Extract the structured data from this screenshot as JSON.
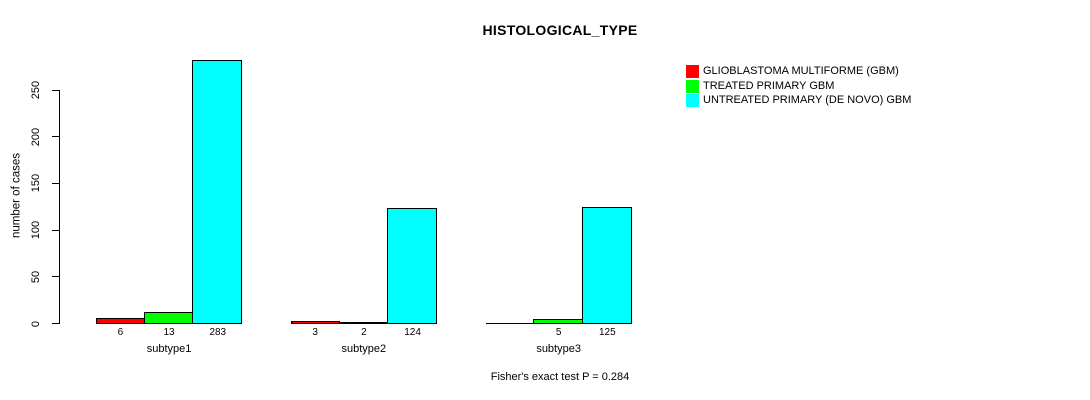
{
  "chart_data": {
    "type": "bar",
    "title": "HISTOLOGICAL_TYPE",
    "xlabel": "",
    "ylabel": "number of cases",
    "footer": "Fisher's exact test P = 0.284",
    "categories": [
      "subtype1",
      "subtype2",
      "subtype3"
    ],
    "series": [
      {
        "name": "GLIOBLASTOMA MULTIFORME (GBM)",
        "color": "#ff0000",
        "values": [
          6,
          3,
          0
        ]
      },
      {
        "name": "TREATED PRIMARY GBM",
        "color": "#00ff00",
        "values": [
          13,
          2,
          5
        ]
      },
      {
        "name": "UNTREATED PRIMARY (DE NOVO) GBM",
        "color": "#00ffff",
        "values": [
          283,
          124,
          125
        ]
      }
    ],
    "bar_value_labels": [
      [
        "6",
        "13",
        "283"
      ],
      [
        "3",
        "2",
        "124"
      ],
      [
        "",
        "5",
        "125"
      ]
    ],
    "yticks": [
      0,
      50,
      100,
      150,
      200,
      250
    ],
    "ylim": [
      0,
      290
    ],
    "grid": "off",
    "legend_position": "right"
  }
}
